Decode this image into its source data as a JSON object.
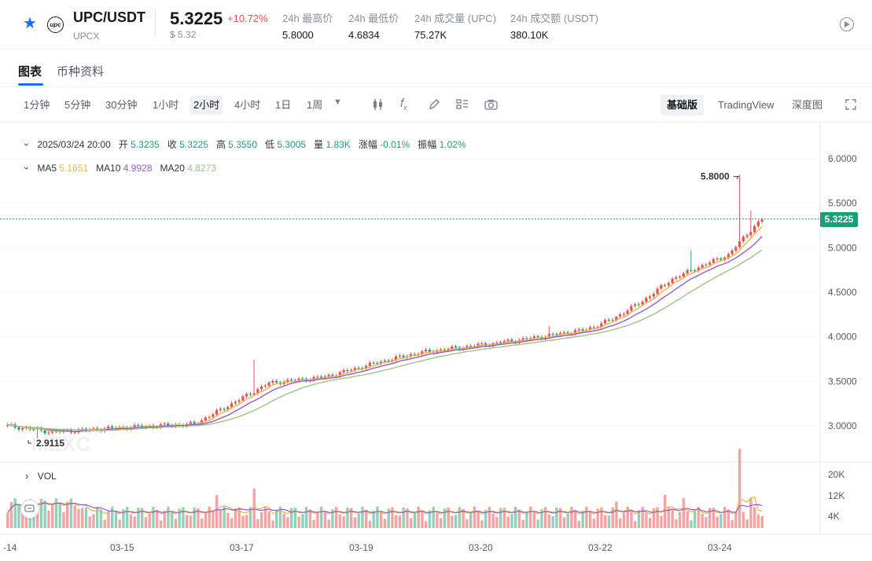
{
  "header": {
    "pair": "UPC/USDT",
    "sub_symbol": "UPCX",
    "logo_text": "upc",
    "price": "5.3225",
    "change": "+10.72%",
    "usd_price": "$ 5.32",
    "stats": [
      {
        "label": "24h 最高价",
        "value": "5.8000"
      },
      {
        "label": "24h 最低价",
        "value": "4.6834"
      },
      {
        "label": "24h 成交量 (UPC)",
        "value": "75.27K"
      },
      {
        "label": "24h 成交额 (USDT)",
        "value": "380.10K"
      }
    ]
  },
  "tabs": [
    {
      "label": "图表"
    },
    {
      "label": "币种资料"
    }
  ],
  "toolbar": {
    "intervals": [
      "1分钟",
      "5分钟",
      "30分钟",
      "1小时",
      "2小时",
      "4小时",
      "1日",
      "1周"
    ],
    "active_interval": "2小时",
    "modes": [
      "基础版",
      "TradingView",
      "深度图"
    ],
    "active_mode": "基础版"
  },
  "info": {
    "date": "2025/03/24 20:00",
    "open_label": "开",
    "open": "5.3235",
    "close_label": "收",
    "close": "5.3225",
    "high_label": "高",
    "high": "5.3550",
    "low_label": "低",
    "low": "5.3005",
    "vol_label": "量",
    "vol": "1.83K",
    "chg_label": "涨幅",
    "chg": "-0.01%",
    "amp_label": "振幅",
    "amp": "1.02%",
    "ma5_label": "MA5",
    "ma5": "5.1651",
    "ma10_label": "MA10",
    "ma10": "4.9928",
    "ma20_label": "MA20",
    "ma20": "4.8273",
    "vol_panel_label": "VOL"
  },
  "colors": {
    "up": "#e8504f",
    "down": "#1a9f7a",
    "ma5": "#e6b74a",
    "ma10": "#9b59c8",
    "ma20": "#9dc38a",
    "accent": "#1c6bff"
  },
  "chart_data": {
    "type": "candlestick",
    "price_axis_ticks": [
      "6.0000",
      "5.5000",
      "5.0000",
      "4.5000",
      "4.0000",
      "3.5000",
      "3.0000"
    ],
    "price_range": [
      2.75,
      6.2
    ],
    "volume_axis_ticks": [
      "20K",
      "12K",
      "4K"
    ],
    "volume_range": [
      0,
      26
    ],
    "date_labels": [
      "-14",
      "03-15",
      "03-17",
      "03-19",
      "03-20",
      "03-22",
      "03-24"
    ],
    "last_price": "5.3225",
    "high_marker": "5.8000",
    "low_marker": "2.9115",
    "watermark": "MEXC",
    "anchors": [
      [
        0,
        3.0
      ],
      [
        12,
        2.93
      ],
      [
        30,
        2.98
      ],
      [
        50,
        3.02
      ],
      [
        58,
        3.2
      ],
      [
        70,
        3.48
      ],
      [
        85,
        3.55
      ],
      [
        100,
        3.72
      ],
      [
        110,
        3.82
      ],
      [
        125,
        3.9
      ],
      [
        138,
        3.97
      ],
      [
        155,
        4.08
      ],
      [
        162,
        4.2
      ],
      [
        170,
        4.4
      ],
      [
        178,
        4.65
      ],
      [
        186,
        4.8
      ],
      [
        193,
        4.92
      ],
      [
        199,
        5.2
      ],
      [
        202,
        5.32
      ]
    ]
  }
}
